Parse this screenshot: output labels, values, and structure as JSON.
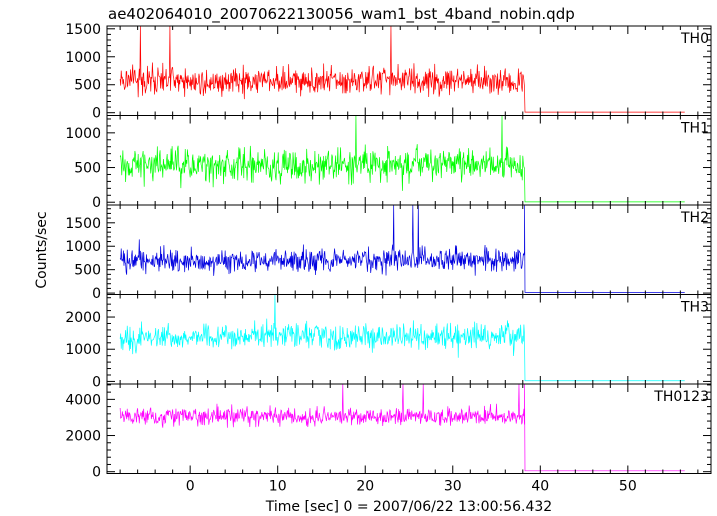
{
  "chart_data": {
    "type": "line",
    "title": "ae402064010_20070622130056_wam1_bst_4band_nobin.qdp",
    "xlabel": "Time [sec] 0 = 2007/06/22 13:00:56.432",
    "ylabel": "Counts/sec",
    "xlim": [
      -9.5,
      59.5
    ],
    "xticks": [
      0,
      10,
      20,
      30,
      40,
      50
    ],
    "x_start": -8.0,
    "x_step": 0.0625,
    "burst_end": 38.2,
    "x_end": 56.5,
    "grid": false,
    "series": [
      {
        "name": "TH0",
        "color": "#ff0000",
        "ylim": [
          -50,
          1550
        ],
        "yticks": [
          0,
          500,
          1000,
          1500
        ],
        "mean": 580,
        "noise": 210,
        "spikes": 1550,
        "post_level": 10,
        "end_spike": 0
      },
      {
        "name": "TH1",
        "color": "#00ff00",
        "ylim": [
          -40,
          1250
        ],
        "yticks": [
          0,
          500,
          1000
        ],
        "mean": 540,
        "noise": 200,
        "spikes": 1250,
        "post_level": 5,
        "end_spike": 0
      },
      {
        "name": "TH2",
        "color": "#0000e0",
        "ylim": [
          -30,
          1880
        ],
        "yticks": [
          0,
          500,
          1000,
          1500
        ],
        "mean": 700,
        "noise": 210,
        "spikes": 1880,
        "post_level": 15,
        "end_spike": 1880
      },
      {
        "name": "TH3",
        "color": "#00ffff",
        "ylim": [
          -80,
          2700
        ],
        "yticks": [
          0,
          1000,
          2000
        ],
        "mean": 1380,
        "noise": 330,
        "spikes": 2700,
        "post_level": 20,
        "end_spike": 0
      },
      {
        "name": "TH0123",
        "color": "#ff00ff",
        "ylim": [
          -100,
          4850
        ],
        "yticks": [
          0,
          2000,
          4000
        ],
        "mean": 3050,
        "noise": 420,
        "spikes": 4850,
        "post_level": 50,
        "end_spike": 4850
      }
    ]
  }
}
